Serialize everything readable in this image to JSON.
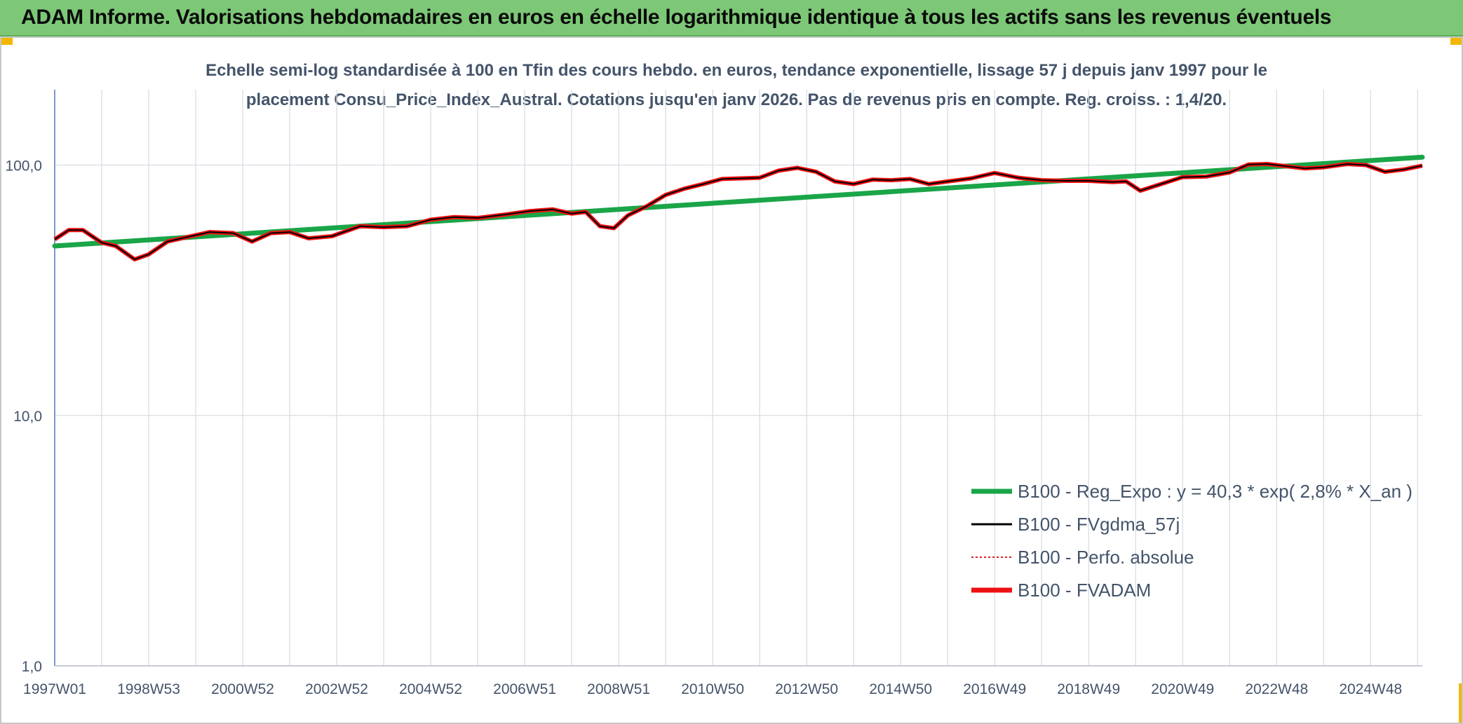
{
  "header": {
    "title": "ADAM Informe. Valorisations hebdomadaires en euros en échelle logarithmique identique à tous les actifs sans les revenus éventuels"
  },
  "chart_data": {
    "type": "line",
    "title_line1": "Echelle semi-log standardisée à 100 en Tfin des cours hebdo. en euros, tendance exponentielle, lissage 57 j depuis janv 1997 pour le",
    "title_line2": "placement Consu_Price_Index_Austral. Cotations jusqu'en janv 2026. Pas de revenus pris en compte. Reg. croiss. : 1,4/20.",
    "y_scale": "log",
    "ylim": [
      1,
      200
    ],
    "y_ticks": [
      1,
      10,
      100
    ],
    "y_tick_labels": [
      "1,0",
      "10,0",
      "100,0"
    ],
    "xlim": [
      1997.0,
      2026.1
    ],
    "x_ticks": [
      1997.0,
      1999.0,
      2001.0,
      2003.0,
      2005.0,
      2007.0,
      2009.0,
      2011.0,
      2013.0,
      2015.0,
      2017.0,
      2019.0,
      2021.0,
      2023.0,
      2025.0
    ],
    "x_tick_labels": [
      "1997W01",
      "1998W53",
      "2000W52",
      "2002W52",
      "2004W52",
      "2006W51",
      "2008W51",
      "2010W50",
      "2012W50",
      "2014W50",
      "2016W49",
      "2018W49",
      "2020W49",
      "2022W48",
      "2024W48"
    ],
    "grid": true,
    "legend_position": "bottom-right",
    "series": [
      {
        "name": "B100 - Reg_Expo : y = 40,3 * exp( 2,8% *  X_an )",
        "color": "#1aa548",
        "style": "thick",
        "x": [
          1997.0,
          2026.1
        ],
        "y": [
          47.5,
          107.5
        ]
      },
      {
        "name": "B100 - FVgdma_57j",
        "color": "#000000",
        "style": "solid",
        "x": [
          1997.0,
          1997.3,
          1997.6,
          1998.0,
          1998.3,
          1998.7,
          1999.0,
          1999.4,
          1999.8,
          2000.3,
          2000.8,
          2001.2,
          2001.6,
          2002.0,
          2002.4,
          2002.9,
          2003.5,
          2004.0,
          2004.5,
          2005.0,
          2005.5,
          2006.0,
          2006.6,
          2007.1,
          2007.6,
          2008.0,
          2008.3,
          2008.6,
          2008.9,
          2009.2,
          2009.6,
          2010.0,
          2010.4,
          2010.8,
          2011.2,
          2011.6,
          2012.0,
          2012.4,
          2012.8,
          2013.2,
          2013.6,
          2014.0,
          2014.4,
          2014.8,
          2015.2,
          2015.6,
          2016.0,
          2016.5,
          2017.0,
          2017.5,
          2018.0,
          2018.5,
          2019.0,
          2019.5,
          2019.8,
          2020.1,
          2020.5,
          2021.0,
          2021.5,
          2022.0,
          2022.4,
          2022.8,
          2023.2,
          2023.6,
          2024.0,
          2024.5,
          2024.9,
          2025.3,
          2025.7,
          2026.1
        ],
        "y": [
          50.5,
          55.0,
          55.0,
          49.0,
          47.5,
          42.0,
          44.0,
          49.5,
          51.5,
          54.0,
          53.5,
          49.5,
          53.5,
          54.0,
          51.0,
          52.0,
          57.0,
          56.5,
          57.0,
          60.5,
          62.0,
          61.5,
          63.5,
          65.5,
          66.5,
          64.0,
          65.0,
          57.0,
          56.0,
          63.0,
          68.5,
          76.0,
          80.5,
          84.0,
          88.0,
          88.5,
          89.0,
          95.0,
          97.5,
          94.0,
          86.0,
          84.0,
          87.5,
          87.0,
          88.0,
          84.0,
          86.0,
          88.5,
          93.0,
          89.0,
          87.0,
          86.5,
          86.5,
          85.5,
          86.0,
          79.0,
          83.5,
          89.5,
          90.0,
          93.5,
          100.5,
          101.0,
          99.0,
          97.0,
          98.0,
          101.0,
          100.0,
          94.0,
          96.0,
          99.5
        ]
      },
      {
        "name": "B100 - Perfo. absolue",
        "color": "#e02020",
        "style": "dotted",
        "x": [],
        "y": []
      },
      {
        "name": "B100 - FVADAM",
        "color": "#ee1111",
        "style": "thick",
        "x": [
          1997.0,
          1997.3,
          1997.6,
          1998.0,
          1998.3,
          1998.7,
          1999.0,
          1999.4,
          1999.8,
          2000.3,
          2000.8,
          2001.2,
          2001.6,
          2002.0,
          2002.4,
          2002.9,
          2003.5,
          2004.0,
          2004.5,
          2005.0,
          2005.5,
          2006.0,
          2006.6,
          2007.1,
          2007.6,
          2008.0,
          2008.3,
          2008.6,
          2008.9,
          2009.2,
          2009.6,
          2010.0,
          2010.4,
          2010.8,
          2011.2,
          2011.6,
          2012.0,
          2012.4,
          2012.8,
          2013.2,
          2013.6,
          2014.0,
          2014.4,
          2014.8,
          2015.2,
          2015.6,
          2016.0,
          2016.5,
          2017.0,
          2017.5,
          2018.0,
          2018.5,
          2019.0,
          2019.5,
          2019.8,
          2020.1,
          2020.5,
          2021.0,
          2021.5,
          2022.0,
          2022.4,
          2022.8,
          2023.2,
          2023.6,
          2024.0,
          2024.5,
          2024.9,
          2025.3,
          2025.7,
          2026.1
        ],
        "y": [
          50.5,
          55.0,
          55.0,
          49.0,
          47.5,
          42.0,
          44.0,
          49.5,
          51.5,
          54.0,
          53.5,
          49.5,
          53.5,
          54.0,
          51.0,
          52.0,
          57.0,
          56.5,
          57.0,
          60.5,
          62.0,
          61.5,
          63.5,
          65.5,
          66.5,
          64.0,
          65.0,
          57.0,
          56.0,
          63.0,
          68.5,
          76.0,
          80.5,
          84.0,
          88.0,
          88.5,
          89.0,
          95.0,
          97.5,
          94.0,
          86.0,
          84.0,
          87.5,
          87.0,
          88.0,
          84.0,
          86.0,
          88.5,
          93.0,
          89.0,
          87.0,
          86.5,
          86.5,
          85.5,
          86.0,
          79.0,
          83.5,
          89.5,
          90.0,
          93.5,
          100.5,
          101.0,
          99.0,
          97.0,
          98.0,
          101.0,
          100.0,
          94.0,
          96.0,
          99.5
        ]
      }
    ]
  }
}
